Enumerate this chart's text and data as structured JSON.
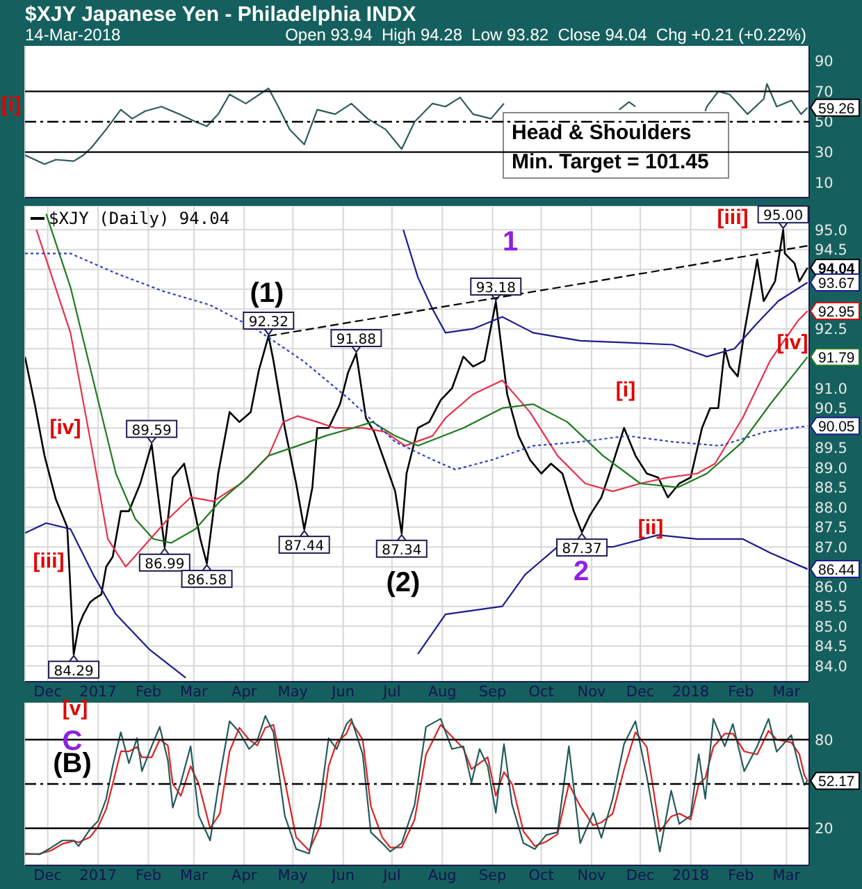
{
  "chart_data": [
    {
      "type": "line",
      "title": "$XJY Japanese Yen - Philadelphia INDX",
      "subtitle": "14-Mar-2018",
      "series": [
        {
          "color": "#2f5a5a",
          "x": [
            "2016-11-17",
            "2016-11-23",
            "2016-11-29",
            "2016-12-06",
            "2016-12-17",
            "2016-12-23",
            "2016-12-28",
            "2017-01-06",
            "2017-01-15",
            "2017-01-22",
            "2017-01-30",
            "2017-02-09",
            "2017-02-20",
            "2017-03-02",
            "2017-03-09",
            "2017-03-16",
            "2017-03-23",
            "2017-04-02",
            "2017-04-16",
            "2017-04-22",
            "2017-04-29",
            "2017-05-08",
            "2017-05-16",
            "2017-05-27",
            "2017-06-06",
            "2017-06-16",
            "2017-06-27",
            "2017-07-07",
            "2017-07-15",
            "2017-07-26",
            "2017-08-03",
            "2017-08-12",
            "2017-08-20",
            "2017-08-31",
            "2017-09-08",
            "2017-10-15",
            "2017-11-18",
            "2017-11-24",
            "2017-11-28",
            "2017-12-10",
            "2018-01-10",
            "2018-01-11",
            "2018-01-18",
            "2018-01-25",
            "2018-02-05",
            "2018-02-15",
            "2018-02-17",
            "2018-02-23",
            "2018-03-04",
            "2018-03-10",
            "2018-03-14"
          ],
          "values": [
            28,
            25,
            22,
            25,
            24,
            28,
            33,
            45,
            58,
            52,
            57,
            60,
            55,
            50,
            47,
            55,
            68,
            62,
            72,
            60,
            45,
            35,
            58,
            55,
            62,
            52,
            45,
            32,
            50,
            62,
            60,
            66,
            55,
            52,
            62,
            null,
            58,
            63,
            60,
            null,
            57,
            60,
            70,
            68,
            55,
            65,
            75,
            60,
            64,
            55,
            59.26
          ]
        }
      ],
      "xlim": [
        "2016-11-17",
        "2018-03-15"
      ],
      "xticks": [
        {
          "value": "2016-12-01",
          "label": null
        },
        {
          "value": "2017-01-01",
          "label": null
        },
        {
          "value": "2017-02-01",
          "label": null
        },
        {
          "value": "2017-03-01",
          "label": null
        },
        {
          "value": "2017-04-01",
          "label": null
        },
        {
          "value": "2017-05-01",
          "label": null
        },
        {
          "value": "2017-06-01",
          "label": null
        },
        {
          "value": "2017-07-01",
          "label": null
        },
        {
          "value": "2017-08-01",
          "label": null
        },
        {
          "value": "2017-09-01",
          "label": null
        },
        {
          "value": "2017-10-01",
          "label": null
        },
        {
          "value": "2017-11-01",
          "label": null
        },
        {
          "value": "2017-12-01",
          "label": null
        },
        {
          "value": "2018-01-01",
          "label": null
        },
        {
          "value": "2018-02-01",
          "label": null
        },
        {
          "value": "2018-03-01",
          "label": null
        }
      ],
      "ylim": [
        0,
        100
      ],
      "yticks": [
        10,
        30,
        50,
        70,
        90
      ],
      "tick_labels": "y",
      "grid": "x",
      "ref_lines": [
        {
          "axis": "y",
          "value": 70,
          "color": "#000000"
        },
        {
          "axis": "y",
          "value": 30,
          "color": "#000000"
        },
        {
          "axis": "y",
          "value": 50,
          "color": "#000000",
          "line_style": "dashed"
        }
      ],
      "annotations": [
        "Open 93.94  High 94.28  Low 93.82  Close 94.04  Chg +0.21 (+0.22%)",
        "Head & Shoulders\nMin. Target  = 101.45",
        "[i]",
        {
          "text": "59.26",
          "x": "2018-03-14",
          "y": 59.26
        }
      ]
    },
    {
      "type": "line",
      "x": [
        "2016-11-17",
        "2016-11-23",
        "2016-11-29",
        "2016-12-06",
        "2016-12-13",
        "2016-12-17",
        "2016-12-20",
        "2016-12-23",
        "2016-12-27",
        "2016-12-30",
        "2017-01-03",
        "2017-01-06",
        "2017-01-10",
        "2017-01-15",
        "2017-01-20",
        "2017-01-27",
        "2017-02-03",
        "2017-02-11",
        "2017-02-16",
        "2017-02-23",
        "2017-03-02",
        "2017-03-05",
        "2017-03-09",
        "2017-03-16",
        "2017-03-23",
        "2017-03-29",
        "2017-04-05",
        "2017-04-10",
        "2017-04-16",
        "2017-04-19",
        "2017-04-26",
        "2017-05-03",
        "2017-05-08",
        "2017-05-13",
        "2017-05-16",
        "2017-05-23",
        "2017-05-30",
        "2017-06-04",
        "2017-06-09",
        "2017-06-15",
        "2017-06-20",
        "2017-06-27",
        "2017-07-03",
        "2017-07-07",
        "2017-07-10",
        "2017-07-17",
        "2017-07-24",
        "2017-07-31",
        "2017-08-07",
        "2017-08-14",
        "2017-08-20",
        "2017-08-27",
        "2017-09-03",
        "2017-09-10",
        "2017-09-17",
        "2017-09-24",
        "2017-10-01",
        "2017-10-07",
        "2017-10-14",
        "2017-10-21",
        "2017-10-26",
        "2017-10-31",
        "2017-11-07",
        "2017-11-14",
        "2017-11-21",
        "2017-11-28",
        "2017-12-05",
        "2017-12-12",
        "2017-12-18",
        "2017-12-25",
        "2018-01-01",
        "2018-01-08",
        "2018-01-13",
        "2018-01-18",
        "2018-01-22",
        "2018-01-25",
        "2018-01-30",
        "2018-02-03",
        "2018-02-08",
        "2018-02-11",
        "2018-02-15",
        "2018-02-22",
        "2018-02-27",
        "2018-02-28",
        "2018-03-06",
        "2018-03-09",
        "2018-03-14"
      ],
      "series": [
        {
          "name": "$XJY (Daily) 94.04",
          "color": "#000000",
          "values": [
            91.79,
            90.6,
            89.3,
            88.2,
            87.5,
            84.29,
            85.0,
            85.3,
            85.6,
            85.7,
            85.8,
            86.5,
            86.75,
            87.9,
            87.9,
            88.6,
            89.59,
            86.99,
            88.75,
            89.1,
            87.8,
            87.2,
            86.58,
            88.85,
            90.4,
            90.15,
            90.4,
            91.45,
            92.32,
            91.7,
            90.0,
            88.6,
            87.44,
            88.5,
            90.0,
            90.0,
            90.6,
            91.4,
            91.88,
            90.25,
            89.9,
            89.1,
            88.4,
            87.34,
            88.85,
            90.0,
            90.15,
            90.7,
            91.0,
            91.8,
            91.55,
            91.7,
            93.18,
            90.85,
            89.8,
            89.2,
            88.85,
            89.1,
            88.85,
            87.9,
            87.37,
            87.8,
            88.25,
            89.1,
            90.0,
            89.3,
            88.85,
            88.75,
            88.25,
            88.6,
            88.75,
            90.0,
            90.5,
            90.5,
            92.0,
            91.55,
            91.3,
            92.4,
            93.55,
            94.25,
            93.2,
            93.7,
            95.0,
            94.4,
            94.15,
            93.7,
            94.04
          ]
        },
        {
          "color": "#e8304a",
          "x": [
            "2016-11-24",
            "2016-12-15",
            "2016-12-29",
            "2017-01-07",
            "2017-01-18",
            "2017-02-13",
            "2017-02-27",
            "2017-03-13",
            "2017-03-30",
            "2017-04-16",
            "2017-04-25",
            "2017-05-04",
            "2017-05-16",
            "2017-05-27",
            "2017-06-13",
            "2017-06-27",
            "2017-07-09",
            "2017-07-26",
            "2017-08-03",
            "2017-08-20",
            "2017-09-07",
            "2017-09-24",
            "2017-10-11",
            "2017-10-28",
            "2017-11-14",
            "2017-12-01",
            "2017-12-18",
            "2018-01-05",
            "2018-01-16",
            "2018-02-02",
            "2018-02-19",
            "2018-03-08",
            "2018-03-14"
          ],
          "values": [
            95.0,
            92.4,
            89.3,
            87.2,
            86.5,
            87.7,
            88.25,
            88.15,
            88.6,
            89.3,
            90.15,
            90.3,
            90.15,
            90.0,
            90.0,
            89.9,
            89.55,
            89.8,
            90.25,
            90.85,
            91.2,
            90.4,
            89.3,
            88.6,
            88.4,
            88.6,
            88.75,
            88.85,
            89.1,
            90.25,
            91.7,
            92.7,
            92.95
          ]
        },
        {
          "color": "#1f7a1f",
          "x": [
            "2016-11-30",
            "2016-12-15",
            "2016-12-29",
            "2017-01-12",
            "2017-01-24",
            "2017-02-04",
            "2017-02-15",
            "2017-03-02",
            "2017-03-17",
            "2017-04-03",
            "2017-04-16",
            "2017-05-04",
            "2017-05-21",
            "2017-06-07",
            "2017-06-19",
            "2017-07-03",
            "2017-07-17",
            "2017-08-14",
            "2017-09-07",
            "2017-09-26",
            "2017-10-17",
            "2017-11-08",
            "2017-12-01",
            "2017-12-24",
            "2018-01-11",
            "2018-02-02",
            "2018-02-19",
            "2018-03-14"
          ],
          "values": [
            95.4,
            93.55,
            91.2,
            88.85,
            87.7,
            87.2,
            87.1,
            87.45,
            88.15,
            88.75,
            89.3,
            89.55,
            89.8,
            90.0,
            90.15,
            89.8,
            89.55,
            90.0,
            90.5,
            90.6,
            90.15,
            89.3,
            88.6,
            88.5,
            88.85,
            89.65,
            90.6,
            91.79
          ]
        },
        {
          "color": "#2a3fbf",
          "line_style": "dotted",
          "x": [
            "2016-11-17",
            "2016-12-15",
            "2017-01-12",
            "2017-02-10",
            "2017-03-11",
            "2017-04-08",
            "2017-05-07",
            "2017-06-04",
            "2017-07-03",
            "2017-07-26",
            "2017-08-09",
            "2017-09-01",
            "2017-09-26",
            "2017-10-25",
            "2017-11-23",
            "2017-12-21",
            "2018-01-19",
            "2018-02-16",
            "2018-03-14"
          ],
          "values": [
            94.4,
            94.4,
            93.9,
            93.45,
            93.1,
            92.5,
            91.7,
            90.75,
            89.65,
            89.2,
            88.95,
            89.2,
            89.55,
            89.65,
            89.8,
            89.65,
            89.55,
            89.9,
            90.05
          ]
        },
        {
          "color": "#1c1c8c",
          "x": [
            "2017-07-08",
            "2017-07-17",
            "2017-07-26",
            "2017-08-03",
            "2017-08-20",
            "2017-09-07",
            "2017-09-26",
            "2017-10-25",
            "2017-11-23",
            "2017-12-21",
            "2018-01-11",
            "2018-01-28",
            "2018-02-10",
            "2018-02-24",
            "2018-03-14"
          ],
          "values": [
            95.0,
            93.8,
            93.0,
            92.4,
            92.5,
            92.8,
            92.4,
            92.2,
            92.15,
            92.1,
            91.8,
            92.0,
            92.6,
            93.2,
            93.67
          ]
        },
        {
          "color": "#1c1c8c",
          "x": [
            "2016-11-17",
            "2016-11-30",
            "2016-12-15",
            "2016-12-29",
            "2017-01-12",
            "2017-02-02",
            "2017-02-24",
            "2017-03-10",
            "2017-07-17",
            "2017-08-03",
            "2017-09-07",
            "2017-09-21",
            "2017-10-11",
            "2017-11-14",
            "2017-12-12",
            "2018-01-05",
            "2018-02-02",
            "2018-02-19",
            "2018-03-14"
          ],
          "values": [
            87.35,
            87.6,
            87.45,
            86.3,
            85.3,
            84.4,
            83.7,
            null,
            84.3,
            85.3,
            85.5,
            86.3,
            87.0,
            87.0,
            87.3,
            87.2,
            87.2,
            86.85,
            86.44
          ]
        },
        {
          "type": "line",
          "color": "#000000",
          "line_style": "dashed",
          "x": [
            "2017-04-16",
            "2018-03-15"
          ],
          "values": [
            92.32,
            94.6
          ]
        }
      ],
      "xlim": [
        "2016-11-17",
        "2018-03-15"
      ],
      "xticks": [
        {
          "value": "2016-12-01",
          "label": "Dec"
        },
        {
          "value": "2017-01-01",
          "label": "2017"
        },
        {
          "value": "2017-02-01",
          "label": "Feb"
        },
        {
          "value": "2017-03-01",
          "label": "Mar"
        },
        {
          "value": "2017-04-01",
          "label": "Apr"
        },
        {
          "value": "2017-05-01",
          "label": "May"
        },
        {
          "value": "2017-06-01",
          "label": "Jun"
        },
        {
          "value": "2017-07-01",
          "label": "Jul"
        },
        {
          "value": "2017-08-01",
          "label": "Aug"
        },
        {
          "value": "2017-09-01",
          "label": "Sep"
        },
        {
          "value": "2017-10-01",
          "label": "Oct"
        },
        {
          "value": "2017-11-01",
          "label": "Nov"
        },
        {
          "value": "2017-12-01",
          "label": "Dec"
        },
        {
          "value": "2018-01-01",
          "label": "2018"
        },
        {
          "value": "2018-02-01",
          "label": "Feb"
        },
        {
          "value": "2018-03-01",
          "label": "Mar"
        }
      ],
      "ylim": [
        83.6,
        95.6
      ],
      "yticks": [
        {
          "value": 84,
          "label": "84.0"
        },
        84.5,
        {
          "value": 85,
          "label": "85.0"
        },
        85.5,
        {
          "value": 86,
          "label": "86.0"
        },
        {
          "value": 86.5,
          "label": null
        },
        {
          "value": 87,
          "label": "87.0"
        },
        87.5,
        {
          "value": 88,
          "label": "88.0"
        },
        88.5,
        {
          "value": 89,
          "label": "89.0"
        },
        89.5,
        {
          "value": 90,
          "label": null
        },
        90.5,
        {
          "value": 91,
          "label": "91.0"
        },
        {
          "value": 91.5,
          "label": null
        },
        {
          "value": 92,
          "label": null
        },
        92.5,
        {
          "value": 93,
          "label": null
        },
        {
          "value": 93.5,
          "label": null
        },
        {
          "value": 94,
          "label": null
        },
        94.5,
        {
          "value": 95,
          "label": "95.0"
        }
      ],
      "grid": true,
      "legend": "top left",
      "annotations": [
        {
          "text": "84.29",
          "x": "2016-12-17",
          "y": 84.29
        },
        {
          "text": "89.59",
          "x": "2017-02-03",
          "y": 89.59
        },
        {
          "text": "86.99",
          "x": "2017-02-11",
          "y": 86.99
        },
        {
          "text": "86.58",
          "x": "2017-03-09",
          "y": 86.58
        },
        {
          "text": "92.32",
          "x": "2017-04-16",
          "y": 92.32
        },
        {
          "text": "87.44",
          "x": "2017-05-08",
          "y": 87.44
        },
        {
          "text": "91.88",
          "x": "2017-06-09",
          "y": 91.88
        },
        {
          "text": "87.34",
          "x": "2017-07-07",
          "y": 87.34
        },
        {
          "text": "93.18",
          "x": "2017-09-03",
          "y": 93.18
        },
        {
          "text": "87.37",
          "x": "2017-10-26",
          "y": 87.37
        },
        {
          "text": "95.00",
          "x": "2018-02-27",
          "y": 95.0
        },
        {
          "text": "94.04",
          "x": "2018-03-14",
          "y": 94.04
        },
        {
          "text": "93.67",
          "x": "2018-03-14",
          "y": 93.67
        },
        {
          "text": "92.95",
          "x": "2018-03-14",
          "y": 92.95
        },
        {
          "text": "91.79",
          "x": "2018-03-14",
          "y": 91.79
        },
        {
          "text": "90.05",
          "x": "2018-03-14",
          "y": 90.05
        },
        {
          "text": "86.44",
          "x": "2018-03-14",
          "y": 86.44
        },
        "[iii]",
        "[iv]",
        "(1)",
        "(2)",
        "1",
        "2",
        "[i]",
        "[ii]",
        "[iii]",
        "[iv]"
      ]
    },
    {
      "type": "line",
      "x": [
        "2016-11-17",
        "2016-11-26",
        "2016-12-03",
        "2016-12-10",
        "2016-12-17",
        "2016-12-20",
        "2016-12-27",
        "2017-01-01",
        "2017-01-06",
        "2017-01-10",
        "2017-01-15",
        "2017-01-20",
        "2017-01-25",
        "2017-01-28",
        "2017-02-03",
        "2017-02-08",
        "2017-02-13",
        "2017-02-16",
        "2017-02-21",
        "2017-02-27",
        "2017-03-04",
        "2017-03-11",
        "2017-03-17",
        "2017-03-23",
        "2017-03-29",
        "2017-04-04",
        "2017-04-09",
        "2017-04-14",
        "2017-04-19",
        "2017-04-26",
        "2017-05-03",
        "2017-05-11",
        "2017-05-18",
        "2017-05-23",
        "2017-05-28",
        "2017-06-03",
        "2017-06-06",
        "2017-06-13",
        "2017-06-18",
        "2017-06-25",
        "2017-06-30",
        "2017-07-07",
        "2017-07-15",
        "2017-07-22",
        "2017-07-31",
        "2017-08-07",
        "2017-08-14",
        "2017-08-19",
        "2017-08-24",
        "2017-08-29",
        "2017-09-03",
        "2017-09-08",
        "2017-09-13",
        "2017-09-20",
        "2017-09-27",
        "2017-10-04",
        "2017-10-11",
        "2017-10-18",
        "2017-10-25",
        "2017-11-02",
        "2017-11-07",
        "2017-11-14",
        "2017-11-21",
        "2017-11-28",
        "2017-12-05",
        "2017-12-13",
        "2017-12-20",
        "2017-12-25",
        "2018-01-01",
        "2018-01-06",
        "2018-01-10",
        "2018-01-15",
        "2018-01-22",
        "2018-01-27",
        "2018-02-03",
        "2018-02-11",
        "2018-02-18",
        "2018-02-23",
        "2018-03-04",
        "2018-03-09",
        "2018-03-12",
        "2018-03-14"
      ],
      "series": [
        {
          "color": "#e02020",
          "values": [
            2.5,
            2.8,
            5,
            9.5,
            11.5,
            10.5,
            14,
            21,
            33,
            50,
            72,
            72,
            75,
            68,
            68,
            80,
            76,
            50,
            42,
            62,
            50,
            20,
            30,
            72,
            88,
            80,
            76,
            88,
            90,
            52,
            14,
            5,
            22,
            62,
            78,
            84,
            92,
            80,
            35,
            14,
            7,
            7,
            26,
            70,
            90,
            82,
            74,
            60,
            64,
            68,
            42,
            58,
            50,
            18,
            8,
            11,
            16,
            50,
            35,
            22,
            24,
            30,
            60,
            85,
            75,
            18,
            28,
            30,
            26,
            50,
            54,
            75,
            84,
            84,
            72,
            70,
            86,
            80,
            78,
            70,
            56,
            52
          ]
        },
        {
          "color": "#245a5a",
          "values": [
            3.1,
            2.4,
            6.9,
            11.8,
            11.8,
            8,
            19.3,
            25,
            40,
            62,
            85,
            64,
            81,
            58.6,
            75.5,
            88.6,
            66,
            34,
            51,
            75.5,
            28.6,
            11.8,
            55,
            92.4,
            85,
            73.6,
            79,
            96,
            85,
            28.6,
            6,
            3,
            40,
            81,
            73.6,
            90.5,
            94,
            70,
            17.4,
            10,
            4.3,
            10,
            36,
            88.6,
            94,
            73.6,
            75.5,
            51,
            73.6,
            62,
            30.5,
            77,
            36,
            10,
            6,
            15.5,
            17.4,
            75.5,
            10,
            30.5,
            13.6,
            40,
            77,
            92.4,
            55,
            4.3,
            45.5,
            23,
            28.6,
            70,
            40,
            94,
            75.5,
            90.5,
            58.6,
            75.5,
            94,
            71.8,
            83,
            60.5,
            49.3,
            52.17
          ]
        }
      ],
      "xlim": [
        "2016-11-17",
        "2018-03-15"
      ],
      "xticks": [
        {
          "value": "2016-12-01",
          "label": "Dec"
        },
        {
          "value": "2017-01-01",
          "label": "2017"
        },
        {
          "value": "2017-02-01",
          "label": "Feb"
        },
        {
          "value": "2017-03-01",
          "label": "Mar"
        },
        {
          "value": "2017-04-01",
          "label": "Apr"
        },
        {
          "value": "2017-05-01",
          "label": "May"
        },
        {
          "value": "2017-06-01",
          "label": "Jun"
        },
        {
          "value": "2017-07-01",
          "label": "Jul"
        },
        {
          "value": "2017-08-01",
          "label": "Aug"
        },
        {
          "value": "2017-09-01",
          "label": "Sep"
        },
        {
          "value": "2017-10-01",
          "label": "Oct"
        },
        {
          "value": "2017-11-01",
          "label": "Nov"
        },
        {
          "value": "2017-12-01",
          "label": "Dec"
        },
        {
          "value": "2018-01-01",
          "label": "2018"
        },
        {
          "value": "2018-02-01",
          "label": "Feb"
        },
        {
          "value": "2018-03-01",
          "label": "Mar"
        }
      ],
      "ylim": [
        -5,
        105
      ],
      "yticks": [
        20,
        80
      ],
      "grid": true,
      "ref_lines": [
        {
          "axis": "y",
          "value": 80,
          "color": "#000000"
        },
        {
          "axis": "y",
          "value": 20,
          "color": "#000000"
        },
        {
          "axis": "y",
          "value": 50,
          "color": "#000000",
          "line_style": "dashed"
        }
      ],
      "annotations": [
        "[v]",
        "C",
        "(B)",
        {
          "text": "52.17",
          "x": "2018-03-14",
          "y": 52.17
        }
      ]
    }
  ]
}
